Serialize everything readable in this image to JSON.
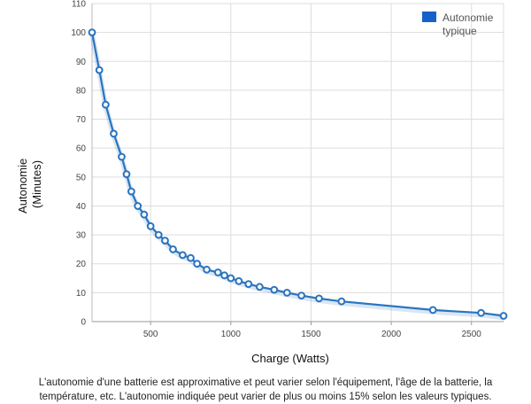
{
  "chart_data": {
    "type": "line",
    "xlabel": "Charge (Watts)",
    "ylabel_lines": [
      "Autonomie",
      "(Minutes)"
    ],
    "xlim": [
      135,
      2700
    ],
    "ylim": [
      0,
      110
    ],
    "x_ticks": [
      500,
      1000,
      1500,
      2000,
      2500
    ],
    "y_ticks": [
      0,
      10,
      20,
      30,
      40,
      50,
      60,
      70,
      80,
      90,
      100,
      110
    ],
    "grid": true,
    "legend_position": "top-right",
    "series_color": "#2a74c0",
    "legend_color": "#1563c8",
    "series": [
      {
        "name_lines": [
          "Autonomie",
          "typique"
        ],
        "x": [
          135,
          180,
          220,
          270,
          320,
          350,
          380,
          420,
          460,
          500,
          550,
          590,
          640,
          700,
          750,
          790,
          850,
          920,
          960,
          1000,
          1050,
          1110,
          1180,
          1270,
          1350,
          1440,
          1550,
          1690,
          2260,
          2560,
          2700
        ],
        "y": [
          100,
          87,
          75,
          65,
          57,
          51,
          45,
          40,
          37,
          33,
          30,
          28,
          25,
          23,
          22,
          20,
          18,
          17,
          16,
          15,
          14,
          13,
          12,
          11,
          10,
          9,
          8,
          7,
          4,
          3,
          2
        ]
      }
    ]
  },
  "caption": {
    "line1": "L'autonomie d'une batterie est approximative et peut varier selon l'équipement, l'âge de la batterie, la",
    "line2": "température, etc. L'autonomie indiquée peut varier de plus ou moins 15% selon les valeurs typiques."
  }
}
